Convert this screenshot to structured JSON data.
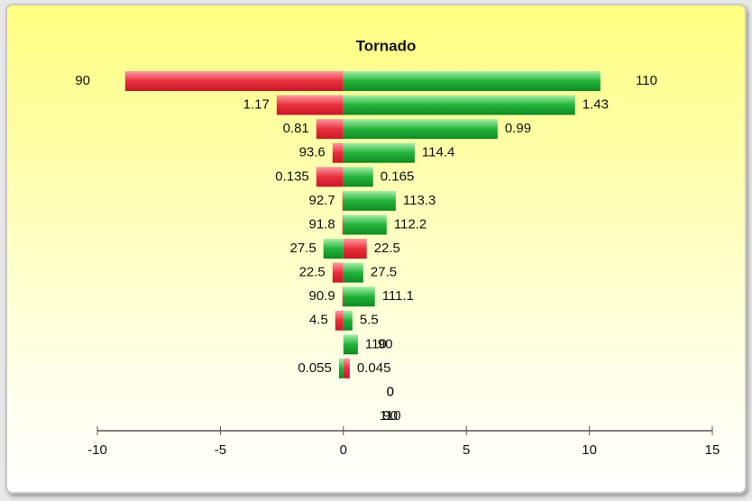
{
  "chart_data": {
    "type": "tornado",
    "title": "Tornado",
    "series": [
      {
        "color": "#e8303c",
        "values": [
          -8.87,
          -2.71,
          -1.1,
          -0.44,
          -1.1,
          -0.04,
          -0.04,
          0.95,
          -0.44,
          -0.04,
          -0.33,
          0,
          0.26,
          0,
          0
        ],
        "labels": [
          90,
          1.17,
          0.81,
          93.6,
          0.135,
          92.7,
          91.8,
          22.5,
          22.5,
          90.9,
          4.5,
          90,
          0.045,
          0,
          90
        ]
      },
      {
        "color": "#22b33a",
        "values": [
          10.45,
          9.42,
          6.27,
          2.9,
          1.21,
          2.13,
          1.76,
          -0.81,
          0.81,
          1.28,
          0.37,
          0.59,
          -0.18,
          0,
          0
        ],
        "labels": [
          110,
          1.43,
          0.99,
          114.4,
          0.165,
          113.3,
          112.2,
          27.5,
          27.5,
          111.1,
          5.5,
          110,
          0.055,
          0,
          110
        ]
      }
    ],
    "xlim": [
      -10,
      15
    ],
    "xticks": [
      -10,
      -5,
      0,
      5,
      10,
      15
    ]
  }
}
